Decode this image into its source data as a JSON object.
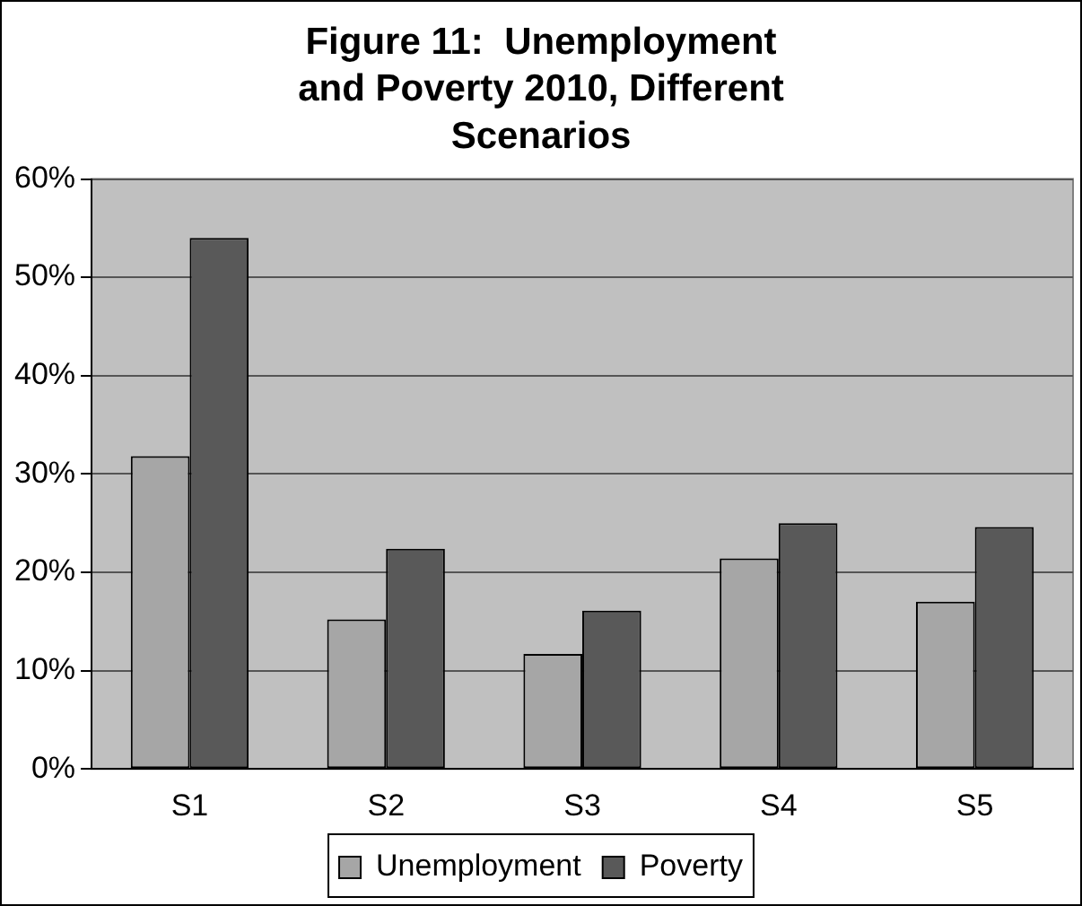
{
  "chart_data": {
    "type": "bar",
    "title": "Figure 11:  Unemployment and Poverty 2010, Different Scenarios",
    "categories": [
      "S1",
      "S2",
      "S3",
      "S4",
      "S5"
    ],
    "series": [
      {
        "name": "Unemployment",
        "color": "#a6a6a6",
        "values": [
          31.8,
          15.2,
          11.7,
          21.4,
          17.0
        ]
      },
      {
        "name": "Poverty",
        "color": "#595959",
        "values": [
          54.0,
          22.4,
          16.1,
          25.0,
          24.6
        ]
      }
    ],
    "ylim": [
      0,
      60
    ],
    "yticks": [
      {
        "value": 0,
        "label": "0%"
      },
      {
        "value": 10,
        "label": "10%"
      },
      {
        "value": 20,
        "label": "20%"
      },
      {
        "value": 30,
        "label": "30%"
      },
      {
        "value": 40,
        "label": "40%"
      },
      {
        "value": 50,
        "label": "50%"
      },
      {
        "value": 60,
        "label": "60%"
      }
    ],
    "grid": "y",
    "legend": "bottom"
  }
}
